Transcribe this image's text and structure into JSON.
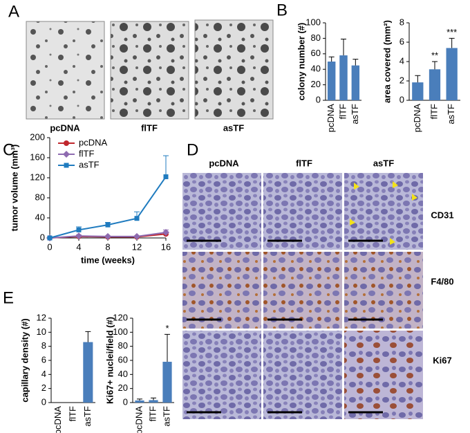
{
  "panel_labels": [
    "A",
    "B",
    "C",
    "D",
    "E"
  ],
  "panel_a": {
    "images": [
      "pcDNA",
      "flTF",
      "asTF"
    ]
  },
  "panel_d": {
    "columns": [
      "pcDNA",
      "flTF",
      "asTF"
    ],
    "rows": [
      "CD31",
      "F4/80",
      "Ki67"
    ]
  },
  "chart_data": [
    {
      "type": "bar",
      "ylabel": "colony number (#)",
      "categories": [
        "pcDNA",
        "flTF",
        "asTF"
      ],
      "values": [
        50,
        58,
        45
      ],
      "errors": [
        6,
        21,
        8
      ],
      "color": "#4a7ebb",
      "ylim": [
        0,
        100
      ],
      "yticks": [
        0,
        20,
        40,
        60,
        80,
        100
      ]
    },
    {
      "type": "bar",
      "ylabel": "area covered (mm²)",
      "categories": [
        "pcDNA",
        "flTF",
        "asTF"
      ],
      "values": [
        1.85,
        3.2,
        5.4
      ],
      "errors": [
        0.7,
        0.8,
        1.0
      ],
      "significance": [
        null,
        "**",
        "***"
      ],
      "color": "#4a7ebb",
      "ylim": [
        0,
        8
      ],
      "yticks": [
        0,
        2,
        4,
        6,
        8
      ]
    },
    {
      "type": "line",
      "xlabel": "time (weeks)",
      "ylabel": "tumor volume (mm³)",
      "x": [
        0,
        4,
        8,
        12,
        16
      ],
      "xlim": [
        0,
        16
      ],
      "xticks": [
        0,
        4,
        8,
        12,
        16
      ],
      "ylim": [
        0,
        200
      ],
      "yticks": [
        0,
        40,
        80,
        120,
        160,
        200
      ],
      "legend": "top-left",
      "series": [
        {
          "name": "pcDNA",
          "color": "#c0272d",
          "marker": "circle",
          "values": [
            0,
            3,
            2,
            2,
            8
          ],
          "errors": [
            0,
            2,
            1,
            1,
            3
          ]
        },
        {
          "name": "flTF",
          "color": "#8e6bb0",
          "marker": "diamond",
          "values": [
            0,
            4,
            3,
            3,
            11
          ],
          "errors": [
            0,
            2,
            1,
            1,
            5
          ]
        },
        {
          "name": "asTF",
          "color": "#1f7bbf",
          "marker": "square",
          "values": [
            0,
            16,
            26,
            39,
            122
          ],
          "errors": [
            0,
            6,
            5,
            13,
            42
          ]
        }
      ]
    },
    {
      "type": "bar",
      "ylabel": "capillary density (#)",
      "categories": [
        "pcDNA",
        "flTF",
        "asTF"
      ],
      "values": [
        0,
        0,
        8.6
      ],
      "errors": [
        0,
        0,
        1.5
      ],
      "color": "#4a7ebb",
      "ylim": [
        0,
        12
      ],
      "yticks": [
        0,
        2,
        4,
        6,
        8,
        10,
        12
      ]
    },
    {
      "type": "bar",
      "ylabel": "Ki67+ nuclei/field (#)",
      "categories": [
        "pcDNA",
        "flTF",
        "asTF"
      ],
      "values": [
        3,
        3.5,
        58
      ],
      "errors": [
        2,
        3,
        39
      ],
      "significance": [
        null,
        null,
        "*"
      ],
      "color": "#4a7ebb",
      "ylim": [
        0,
        120
      ],
      "yticks": [
        0,
        20,
        40,
        60,
        80,
        100,
        120
      ]
    }
  ]
}
